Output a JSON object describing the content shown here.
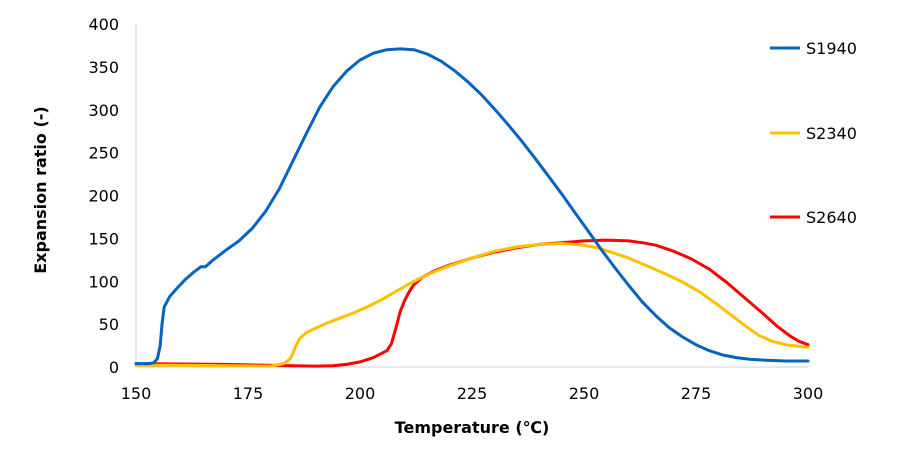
{
  "chart_data": {
    "type": "line",
    "title": "",
    "xlabel": "Temperature (℃)",
    "ylabel": "Expansion ratio (-)",
    "xlim": [
      150,
      300
    ],
    "ylim": [
      0,
      400
    ],
    "xticks": [
      150,
      175,
      200,
      225,
      250,
      275,
      300
    ],
    "yticks": [
      0,
      50,
      100,
      150,
      200,
      250,
      300,
      350,
      400
    ],
    "grid": false,
    "legend_position": "right",
    "series": [
      {
        "name": "S1940",
        "color": "#0563c1",
        "points": [
          [
            150,
            4
          ],
          [
            153,
            4
          ],
          [
            154,
            5
          ],
          [
            154.8,
            10
          ],
          [
            155.4,
            25
          ],
          [
            155.8,
            50
          ],
          [
            156.3,
            70
          ],
          [
            157.5,
            82
          ],
          [
            159,
            91
          ],
          [
            161,
            102
          ],
          [
            163,
            111
          ],
          [
            164.5,
            117
          ],
          [
            165.5,
            117
          ],
          [
            167,
            124
          ],
          [
            170,
            136
          ],
          [
            173,
            147
          ],
          [
            176,
            162
          ],
          [
            179,
            182
          ],
          [
            182,
            208
          ],
          [
            185,
            240
          ],
          [
            188,
            272
          ],
          [
            191,
            303
          ],
          [
            194,
            327
          ],
          [
            197,
            345
          ],
          [
            200,
            358
          ],
          [
            203,
            366
          ],
          [
            206,
            370
          ],
          [
            209,
            371
          ],
          [
            212,
            370
          ],
          [
            215,
            365
          ],
          [
            218,
            357
          ],
          [
            221,
            346
          ],
          [
            224,
            333
          ],
          [
            227,
            318
          ],
          [
            230,
            301
          ],
          [
            233,
            283
          ],
          [
            236,
            264
          ],
          [
            239,
            244
          ],
          [
            242,
            223
          ],
          [
            245,
            202
          ],
          [
            248,
            180
          ],
          [
            251,
            158
          ],
          [
            254,
            136
          ],
          [
            257,
            115
          ],
          [
            260,
            95
          ],
          [
            263,
            76
          ],
          [
            266,
            60
          ],
          [
            269,
            46
          ],
          [
            272,
            35
          ],
          [
            275,
            26
          ],
          [
            278,
            19
          ],
          [
            281,
            14
          ],
          [
            284,
            11
          ],
          [
            287,
            9
          ],
          [
            290,
            8
          ],
          [
            295,
            7
          ],
          [
            300,
            7
          ]
        ]
      },
      {
        "name": "S2340",
        "color": "#ffc000",
        "points": [
          [
            150,
            2
          ],
          [
            160,
            2
          ],
          [
            170,
            1.5
          ],
          [
            180,
            1
          ],
          [
            183,
            4
          ],
          [
            184.5,
            10
          ],
          [
            185.5,
            22
          ],
          [
            186.5,
            33
          ],
          [
            188,
            40
          ],
          [
            190,
            45
          ],
          [
            193,
            52
          ],
          [
            196,
            58
          ],
          [
            199,
            64
          ],
          [
            202,
            71
          ],
          [
            205,
            79
          ],
          [
            208,
            88
          ],
          [
            211,
            97
          ],
          [
            214,
            105
          ],
          [
            217,
            112
          ],
          [
            220,
            118
          ],
          [
            225,
            127
          ],
          [
            230,
            135
          ],
          [
            235,
            140
          ],
          [
            240,
            143
          ],
          [
            245,
            144
          ],
          [
            250,
            142
          ],
          [
            253,
            139
          ],
          [
            256,
            134
          ],
          [
            260,
            127
          ],
          [
            264,
            118
          ],
          [
            268,
            109
          ],
          [
            272,
            99
          ],
          [
            276,
            87
          ],
          [
            280,
            72
          ],
          [
            283,
            60
          ],
          [
            286,
            48
          ],
          [
            289,
            37
          ],
          [
            292,
            30
          ],
          [
            295,
            26
          ],
          [
            298,
            24
          ],
          [
            300,
            23
          ]
        ]
      },
      {
        "name": "S2640",
        "color": "#ff0000",
        "points": [
          [
            150,
            4
          ],
          [
            160,
            3.5
          ],
          [
            170,
            3
          ],
          [
            180,
            2
          ],
          [
            185,
            1.5
          ],
          [
            190,
            1
          ],
          [
            194,
            1.5
          ],
          [
            197,
            3
          ],
          [
            200,
            6
          ],
          [
            203,
            11
          ],
          [
            206,
            19
          ],
          [
            207,
            27
          ],
          [
            208,
            45
          ],
          [
            209,
            65
          ],
          [
            210,
            78
          ],
          [
            211,
            88
          ],
          [
            212,
            96
          ],
          [
            214,
            105
          ],
          [
            217,
            113
          ],
          [
            220,
            119
          ],
          [
            225,
            127
          ],
          [
            230,
            134
          ],
          [
            235,
            139
          ],
          [
            240,
            143
          ],
          [
            245,
            145
          ],
          [
            250,
            147
          ],
          [
            255,
            148
          ],
          [
            260,
            147
          ],
          [
            263,
            145
          ],
          [
            266,
            142
          ],
          [
            270,
            135
          ],
          [
            274,
            126
          ],
          [
            278,
            114
          ],
          [
            282,
            98
          ],
          [
            286,
            80
          ],
          [
            290,
            62
          ],
          [
            293,
            48
          ],
          [
            296,
            36
          ],
          [
            298,
            30
          ],
          [
            300,
            26
          ]
        ]
      }
    ]
  }
}
